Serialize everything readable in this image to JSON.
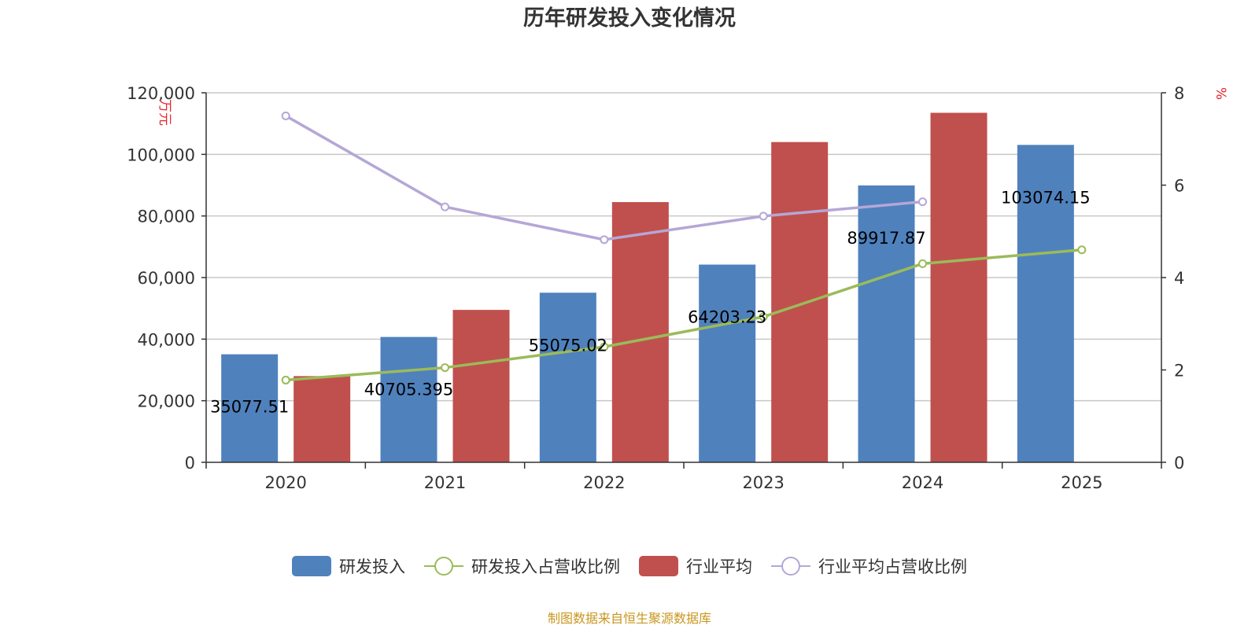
{
  "chart_data": {
    "type": "bar",
    "title": "历年研发投入变化情况",
    "categories": [
      "2020",
      "2021",
      "2022",
      "2023",
      "2024",
      "2025"
    ],
    "y_left": {
      "unit": "万元",
      "ticks": [
        "0",
        "20,000",
        "40,000",
        "60,000",
        "80,000",
        "100,000",
        "120,000"
      ],
      "ylim": [
        0,
        120000
      ]
    },
    "y_right": {
      "unit": "%",
      "ticks": [
        "0",
        "2",
        "4",
        "6",
        "8"
      ],
      "ylim": [
        0,
        8
      ]
    },
    "series": [
      {
        "name": "研发投入",
        "type": "bar",
        "axis": "left",
        "color": "#4f81bd",
        "values": [
          35077.51,
          40705.395,
          55075.02,
          64203.23,
          89917.87,
          103074.15
        ],
        "labels": [
          "35077.51",
          "40705.395",
          "55075.02",
          "64203.23",
          "89917.87",
          "103074.15"
        ]
      },
      {
        "name": "研发投入占营收比例",
        "type": "line",
        "axis": "right",
        "color": "#9bbb59",
        "values": [
          1.78,
          2.05,
          2.5,
          3.15,
          4.3,
          4.6
        ]
      },
      {
        "name": "行业平均",
        "type": "bar",
        "axis": "left",
        "color": "#c0504d",
        "values": [
          28000,
          49500,
          84500,
          104000,
          113500,
          null
        ]
      },
      {
        "name": "行业平均占营收比例",
        "type": "line",
        "axis": "right",
        "color": "#b4a7d6",
        "values": [
          7.5,
          5.53,
          4.82,
          5.33,
          5.64,
          null
        ]
      }
    ],
    "grid": true,
    "legend_position": "bottom"
  },
  "source_text": "制图数据来自恒生聚源数据库"
}
